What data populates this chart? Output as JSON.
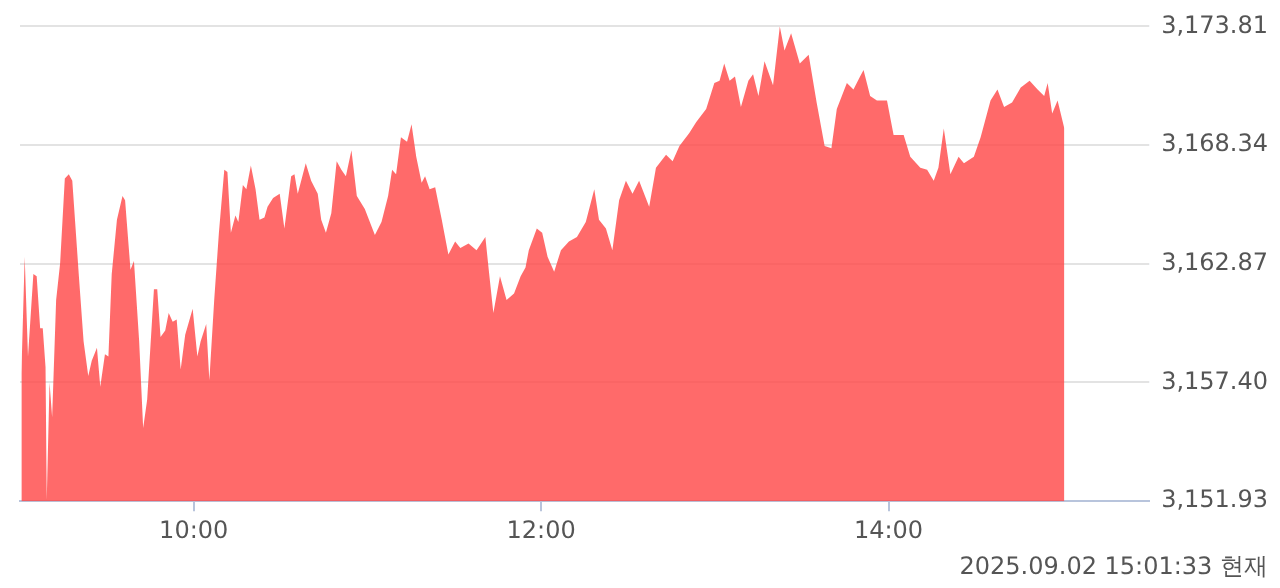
{
  "chart_data": {
    "type": "area",
    "x": [
      9.008,
      9.027,
      9.046,
      9.077,
      9.096,
      9.116,
      9.131,
      9.147,
      9.154,
      9.17,
      9.185,
      9.208,
      9.231,
      9.258,
      9.281,
      9.301,
      9.339,
      9.366,
      9.393,
      9.413,
      9.443,
      9.462,
      9.489,
      9.509,
      9.528,
      9.558,
      9.59,
      9.605,
      9.636,
      9.656,
      9.686,
      9.709,
      9.732,
      9.771,
      9.79,
      9.809,
      9.836,
      9.856,
      9.879,
      9.902,
      9.925,
      9.951,
      9.994,
      10.021,
      10.04,
      10.072,
      10.09,
      10.118,
      10.145,
      10.176,
      10.194,
      10.214,
      10.24,
      10.257,
      10.283,
      10.303,
      10.329,
      10.356,
      10.379,
      10.407,
      10.425,
      10.457,
      10.495,
      10.522,
      10.561,
      10.58,
      10.599,
      10.645,
      10.676,
      10.714,
      10.734,
      10.761,
      10.792,
      10.823,
      10.85,
      10.876,
      10.908,
      10.939,
      10.985,
      11.043,
      11.081,
      11.119,
      11.142,
      11.165,
      11.193,
      11.228,
      11.254,
      11.281,
      11.312,
      11.332,
      11.358,
      11.39,
      11.428,
      11.466,
      11.505,
      11.535,
      11.582,
      11.628,
      11.679,
      11.697,
      11.725,
      11.763,
      11.801,
      11.844,
      11.882,
      11.91,
      11.929,
      11.975,
      12.006,
      12.037,
      12.075,
      12.114,
      12.16,
      12.206,
      12.257,
      12.306,
      12.333,
      12.373,
      12.41,
      12.449,
      12.488,
      12.526,
      12.564,
      12.622,
      12.661,
      12.719,
      12.757,
      12.796,
      12.853,
      12.893,
      12.95,
      12.997,
      13.027,
      13.054,
      13.085,
      13.116,
      13.15,
      13.193,
      13.22,
      13.251,
      13.286,
      13.335,
      13.374,
      13.401,
      13.439,
      13.489,
      13.54,
      13.586,
      13.632,
      13.671,
      13.702,
      13.76,
      13.798,
      13.836,
      13.856,
      13.894,
      13.933,
      13.991,
      14.029,
      14.087,
      14.125,
      14.183,
      14.222,
      14.26,
      14.287,
      14.318,
      14.356,
      14.403,
      14.434,
      14.491,
      14.53,
      14.587,
      14.627,
      14.665,
      14.711,
      14.761,
      14.812,
      14.858,
      14.896,
      14.916,
      14.942,
      14.973,
      15.012
    ],
    "series": [
      {
        "color": "#ff4545",
        "values": [
          3157.8,
          3163.2,
          3158.6,
          3162.4,
          3162.3,
          3159.9,
          3159.9,
          3158.1,
          3152.0,
          3157.4,
          3155.8,
          3161.2,
          3162.9,
          3166.8,
          3167.0,
          3166.7,
          3162.3,
          3159.3,
          3157.7,
          3158.4,
          3159.0,
          3157.2,
          3158.7,
          3158.6,
          3162.4,
          3164.9,
          3166.0,
          3165.8,
          3162.6,
          3163.0,
          3159.3,
          3155.3,
          3156.6,
          3161.7,
          3161.7,
          3159.5,
          3159.8,
          3160.6,
          3160.2,
          3160.3,
          3158.0,
          3159.6,
          3160.8,
          3158.6,
          3159.3,
          3160.1,
          3157.5,
          3161.2,
          3164.3,
          3167.2,
          3167.1,
          3164.3,
          3165.1,
          3164.8,
          3166.5,
          3166.3,
          3167.4,
          3166.3,
          3164.9,
          3165.0,
          3165.5,
          3165.9,
          3166.1,
          3164.5,
          3166.9,
          3167.0,
          3166.1,
          3167.5,
          3166.7,
          3166.1,
          3164.9,
          3164.3,
          3165.2,
          3167.6,
          3167.2,
          3166.9,
          3168.1,
          3166.0,
          3165.4,
          3164.2,
          3164.8,
          3166.0,
          3167.2,
          3167.0,
          3168.7,
          3168.5,
          3169.3,
          3167.8,
          3166.6,
          3166.9,
          3166.3,
          3166.4,
          3164.9,
          3163.3,
          3163.9,
          3163.6,
          3163.8,
          3163.5,
          3164.1,
          3162.7,
          3160.6,
          3162.3,
          3161.2,
          3161.5,
          3162.3,
          3162.7,
          3163.5,
          3164.5,
          3164.3,
          3163.2,
          3162.5,
          3163.5,
          3163.9,
          3164.1,
          3164.8,
          3166.3,
          3164.9,
          3164.5,
          3163.5,
          3165.8,
          3166.7,
          3166.1,
          3166.7,
          3165.5,
          3167.3,
          3167.9,
          3167.6,
          3168.3,
          3168.9,
          3169.4,
          3170.0,
          3171.2,
          3171.3,
          3172.1,
          3171.3,
          3171.5,
          3170.1,
          3171.3,
          3171.6,
          3170.6,
          3172.2,
          3171.1,
          3173.8,
          3172.7,
          3173.5,
          3172.1,
          3172.5,
          3170.3,
          3168.3,
          3168.2,
          3170.0,
          3171.2,
          3170.9,
          3171.5,
          3171.8,
          3170.6,
          3170.4,
          3170.4,
          3168.8,
          3168.8,
          3167.8,
          3167.3,
          3167.2,
          3166.7,
          3167.3,
          3169.1,
          3167.0,
          3167.8,
          3167.5,
          3167.8,
          3168.7,
          3170.4,
          3170.9,
          3170.1,
          3170.3,
          3171.0,
          3171.3,
          3170.9,
          3170.6,
          3171.2,
          3169.8,
          3170.4,
          3169.1
        ]
      }
    ],
    "xlim": [
      9,
      15.5
    ],
    "xticks": [
      {
        "value": 10,
        "label": "10:00"
      },
      {
        "value": 12,
        "label": "12:00"
      },
      {
        "value": 14,
        "label": "14:00"
      }
    ],
    "ylim": [
      3151.93,
      3173.81
    ],
    "yticks": [
      {
        "value": 3151.93,
        "label": "3,151.93"
      },
      {
        "value": 3157.4,
        "label": "3,157.40"
      },
      {
        "value": 3162.87,
        "label": "3,162.87"
      },
      {
        "value": 3168.34,
        "label": "3,168.34"
      },
      {
        "value": 3173.81,
        "label": "3,173.81"
      }
    ],
    "grid": "y",
    "annotations": [
      "2025.09.02 15:01:33 현재"
    ]
  }
}
